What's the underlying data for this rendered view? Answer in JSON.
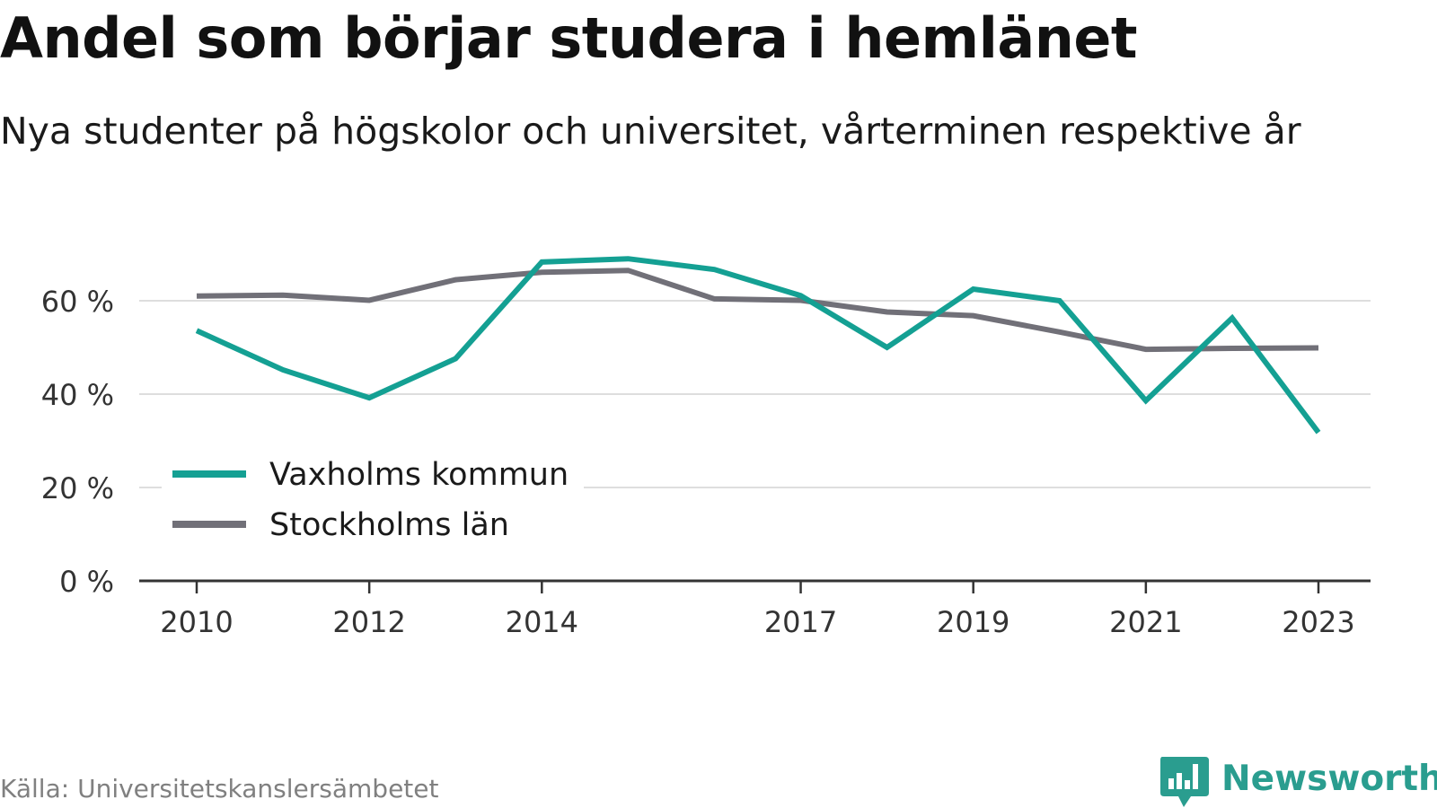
{
  "chart_data": {
    "type": "line",
    "title": "Andel som börjar studera i hemlänet",
    "subtitle": "Nya studenter på högskolor och universitet, vårterminen respektive år",
    "x": [
      2010,
      2011,
      2012,
      2013,
      2014,
      2015,
      2016,
      2017,
      2018,
      2019,
      2020,
      2021,
      2022,
      2023
    ],
    "x_ticks": [
      "2010",
      "2012",
      "2014",
      "2017",
      "2019",
      "2021",
      "2023"
    ],
    "y_ticks": [
      0,
      20,
      40,
      60
    ],
    "y_tick_labels": [
      "0 %",
      "20 %",
      "40 %",
      "60 %"
    ],
    "ylim": [
      0,
      70
    ],
    "grid": "horizontal",
    "legend_position": "bottom-left",
    "series": [
      {
        "name": "Vaxholms kommun",
        "color": "#14a093",
        "values": [
          53.6,
          45.2,
          39.2,
          47.6,
          68.3,
          69.0,
          66.7,
          61.1,
          50.0,
          62.5,
          60.0,
          38.6,
          56.3,
          31.8
        ]
      },
      {
        "name": "Stockholms län",
        "color": "#717078",
        "values": [
          61.0,
          61.2,
          60.1,
          64.5,
          66.1,
          66.5,
          60.4,
          60.1,
          57.6,
          56.8,
          53.3,
          49.6,
          49.8,
          49.9
        ]
      }
    ]
  },
  "source": "Källa: Universitetskanslersämbetet",
  "brand": "Newsworthy",
  "colors": {
    "brand": "#2a9d8f",
    "grid": "#dedede",
    "axis": "#333333"
  }
}
